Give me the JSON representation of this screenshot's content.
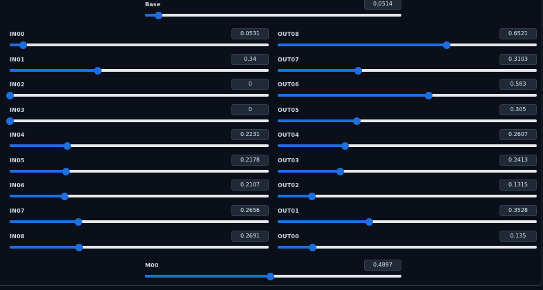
{
  "sliders": {
    "base": {
      "label": "Base",
      "value": "0.0514",
      "fraction": 0.0514
    },
    "in00": {
      "label": "IN00",
      "value": "0.0531",
      "fraction": 0.0531
    },
    "in01": {
      "label": "IN01",
      "value": "0.34",
      "fraction": 0.34
    },
    "in02": {
      "label": "IN02",
      "value": "0",
      "fraction": 0
    },
    "in03": {
      "label": "IN03",
      "value": "0",
      "fraction": 0
    },
    "in04": {
      "label": "IN04",
      "value": "0.2231",
      "fraction": 0.2231
    },
    "in05": {
      "label": "IN05",
      "value": "0.2178",
      "fraction": 0.2178
    },
    "in06": {
      "label": "IN06",
      "value": "0.2107",
      "fraction": 0.2107
    },
    "in07": {
      "label": "IN07",
      "value": "0.2656",
      "fraction": 0.2656
    },
    "in08": {
      "label": "IN08",
      "value": "0.2691",
      "fraction": 0.2691
    },
    "out08": {
      "label": "OUT08",
      "value": "0.6521",
      "fraction": 0.6521
    },
    "out07": {
      "label": "OUT07",
      "value": "0.3103",
      "fraction": 0.3103
    },
    "out06": {
      "label": "OUT06",
      "value": "0.583",
      "fraction": 0.583
    },
    "out05": {
      "label": "OUT05",
      "value": "0.305",
      "fraction": 0.305
    },
    "out04": {
      "label": "OUT04",
      "value": "0.2607",
      "fraction": 0.2607
    },
    "out03": {
      "label": "OUT03",
      "value": "0.2413",
      "fraction": 0.2413
    },
    "out02": {
      "label": "OUT02",
      "value": "0.1315",
      "fraction": 0.1315
    },
    "out01": {
      "label": "OUT01",
      "value": "0.3528",
      "fraction": 0.3528
    },
    "out00": {
      "label": "OUT00",
      "value": "0.135",
      "fraction": 0.135
    },
    "m00": {
      "label": "M00",
      "value": "0.4897",
      "fraction": 0.4897
    }
  },
  "colors": {
    "accent": "#1d6fe0",
    "track": "#e5e7eb",
    "background": "#0b0f19"
  }
}
